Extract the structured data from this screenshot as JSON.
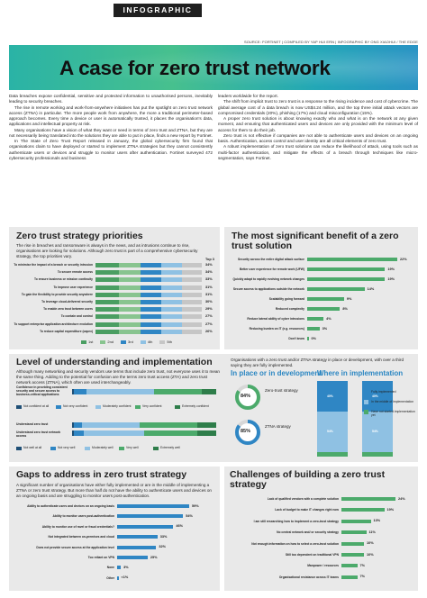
{
  "header": {
    "tag": "INFOGRAPHIC",
    "source": "SOURCE: FORTINET | COMPILED BY YAP HUI ERN | INFOGRAPHIC BY ONG XIAOHUI / THE EDGE",
    "title": "A case for zero trust network"
  },
  "intro": {
    "col1": [
      "Data breaches expose confidential, sensitive and protected information to unauthorised persons, inevitably leading to security breaches.",
      "The rise in remote working and work-from-anywhere initiatives has put the spotlight on zero trust network access (ZTNA) in particular. The more people work from anywhere, the more a traditional perimeter-based approach becomes. Every time a device or user is automatically trusted, it places the organisation's data, applications and intellectual property at risk.",
      "Many organisations have a vision of what they want or need in terms of zero trust and ZTNA, but they are not necessarily being translated into the solutions they are able to put in place, finds a new report by Fortinet.",
      "In The State of Zero Trust Report released in January, the global cybersecurity firm found that organisations claim to have deployed or started to implement ZTNA strategies but they cannot consistently authenticate users or devices and struggle to monitor users after authentication. Fortinet surveyed 472 cybersecurity professionals and business"
    ],
    "col2": [
      "leaders worldwide for the report.",
      "The shift from implicit trust to zero trust is a response to the rising incidence and cost of cybercrime. The global average cost of a data breach is now US$4.24 million, and the top three initial attack vectors are compromised credentials (20%), phishing (17%) and cloud misconfiguration (15%).",
      "A proper zero trust solution is about knowing exactly who and what is on the network at any given moment, and ensuring that authenticated users and devices are only provided with the minimum level of access for them to do their job.",
      "Zero trust is not effective if companies are not able to authenticate users and devices on an ongoing basis. Authentication, access control and user identity are all critical elements of zero trust.",
      "A robust implementation of zero trust solutions can reduce the likelihood of attack, using tools such as multi-factor authentication, and mitigate the effects of a breach through techniques like micro-segmentation, says Fortinet."
    ]
  },
  "priorities": {
    "title": "Zero trust strategy priorities",
    "text": "The rise in breaches and ransomware is always in the news, and as intrusions continue to rise, organisations are looking for solutions. Although zero trust is part of a comprehensive cybersecurity strategy, the top priorities vary.",
    "top3_label": "Top 3",
    "legend": [
      "1st",
      "2nd",
      "3rd",
      "4th",
      "5th"
    ],
    "colors": [
      "#4a9e62",
      "#88c48f",
      "#2f86c4",
      "#8fc1e3",
      "#c6c6c6"
    ],
    "rows": [
      {
        "label": "To minimise the impact of a breach or security intrusion",
        "top3": "34%"
      },
      {
        "label": "To secure remote access",
        "top3": "34%"
      },
      {
        "label": "To ensure business or mission continuity",
        "top3": "33%"
      },
      {
        "label": "To improve user experience",
        "top3": "31%"
      },
      {
        "label": "To gain the flexibility to provide security anywhere",
        "top3": "31%"
      },
      {
        "label": "To leverage cloud-delivered security",
        "top3": "30%"
      },
      {
        "label": "To enable zero trust between users",
        "top3": "29%"
      },
      {
        "label": "To contain and control",
        "top3": "27%"
      },
      {
        "label": "To support enterprise application architecture evolution",
        "top3": "27%"
      },
      {
        "label": "To reduce capital expenditure (capex)",
        "top3": "26%"
      }
    ]
  },
  "benefit": {
    "title": "The most significant benefit of a zero trust solution",
    "color": "#4caa6b",
    "chart_data": {
      "type": "bar",
      "categories": [
        "Security across the entire digital attack surface",
        "Better user experience for remote work (UFW)",
        "Quickly adapt to rapidly evolving network changes",
        "Secure access to applications outside the network",
        "Scalability going forward",
        "Reduced complexity",
        "Reduce lateral ability of cyber intrusions",
        "Reducing burden on IT (e.g. resources)",
        "Don't know"
      ],
      "values": [
        22,
        19,
        19,
        14,
        9,
        8,
        4,
        3,
        0
      ],
      "labels": [
        "22%",
        "19%",
        "19%",
        "14%",
        "9%",
        "8%",
        "4%",
        "3%",
        "0%"
      ]
    }
  },
  "understanding": {
    "title": "Level of understanding and implementation",
    "text": "Although many networking and security vendors use terms that include zero trust, not everyone uses it to mean the same thing. Adding to the potential for confusion are the terms zero trust access (ZTA) and zero trust network access (ZTNA), which often are used interchangeably.",
    "confidence": {
      "label": "Confidence in providing consistent security and secure access to business-critical applications",
      "legend": [
        "Not confident at all",
        "Not very confident",
        "Moderately confident",
        "Very confident",
        "Extremely confident"
      ],
      "colors": [
        "#1f4f76",
        "#2f86c4",
        "#8fc1e3",
        "#4caa6b",
        "#2e7d4a"
      ],
      "values": [
        1,
        9,
        47,
        33,
        10
      ]
    },
    "understand": {
      "rows": [
        "Understand zero trust",
        "Understand zero trust network access"
      ],
      "legend": [
        "Not well at all",
        "Not very well",
        "Moderately well",
        "Very well",
        "Extremely well"
      ],
      "colors": [
        "#1f4f76",
        "#2f86c4",
        "#8fc1e3",
        "#4caa6b",
        "#2e7d4a"
      ],
      "values": [
        [
          1,
          6,
          40,
          40,
          13
        ],
        [
          1,
          7,
          42,
          37,
          13
        ]
      ]
    },
    "survey_text": "Organisations with a zero trust and/or ZTNA strategy in place or development, with over a third saying they are fully implemented.",
    "development_title": "In place or in development",
    "implementation_title": "Where in implementation",
    "zt_value": "84%",
    "zt_label": "Zero-trust strategy",
    "ztna_value": "85%",
    "ztna_label": "ZTNA strategy",
    "donut_colors": [
      "#4caa6b",
      "#2f86c4"
    ],
    "impl_legend": [
      "Fully implemented",
      "In the middle of implementation",
      "Have not started implementation yet"
    ],
    "impl_colors": [
      "#2f86c4",
      "#8fc1e3",
      "#4caa6b"
    ],
    "impl_values": [
      [
        40,
        54,
        6
      ],
      [
        40,
        54,
        6
      ]
    ],
    "impl_labels": [
      [
        "40%",
        "54%",
        "6%"
      ],
      [
        "40%",
        "54%",
        "6%"
      ]
    ]
  },
  "gaps": {
    "title": "Gaps to address in zero trust strategy",
    "text": "A significant number of organisations have either fully implemented or are in the middle of implementing a ZTNA or zero trust strategy. But more than half do not have the ability to authenticate users and devices on an ongoing basis and are struggling to monitor users post-authentication.",
    "color": "#2f86c4",
    "chart_data": {
      "type": "bar",
      "categories": [
        "Ability to authenticate users and devices on an ongoing basis",
        "Ability to monitor users post-authentication",
        "Ability to monitor use of ravel or fraud credentials?",
        "Not integrated between on-premises and cloud",
        "Does not provide secure access at the application level",
        "Too reliant on VPN",
        "None",
        "Other"
      ],
      "values": [
        59,
        54,
        46,
        33,
        32,
        25,
        3,
        1
      ],
      "labels": [
        "59%",
        "54%",
        "46%",
        "33%",
        "32%",
        "25%",
        "3%",
        "<1%"
      ]
    }
  },
  "challenges": {
    "title": "Challenges of building a zero trust strategy",
    "color": "#4caa6b",
    "chart_data": {
      "type": "bar",
      "categories": [
        "Lack of qualified vendors with a complete solution",
        "Lack of budget to make IT changes right now",
        "I am still researching how to implement a zero-trust strategy",
        "No central network and/ or security strategy",
        "Not enough information on how to select a zero-trust solution",
        "Still too dependent on traditional VPN",
        "Manpower / resources",
        "Organisational resistance across IT teams"
      ],
      "values": [
        24,
        19,
        13,
        11,
        10,
        10,
        7,
        7
      ],
      "labels": [
        "24%",
        "19%",
        "13%",
        "11%",
        "10%",
        "10%",
        "7%",
        "7%"
      ]
    }
  }
}
